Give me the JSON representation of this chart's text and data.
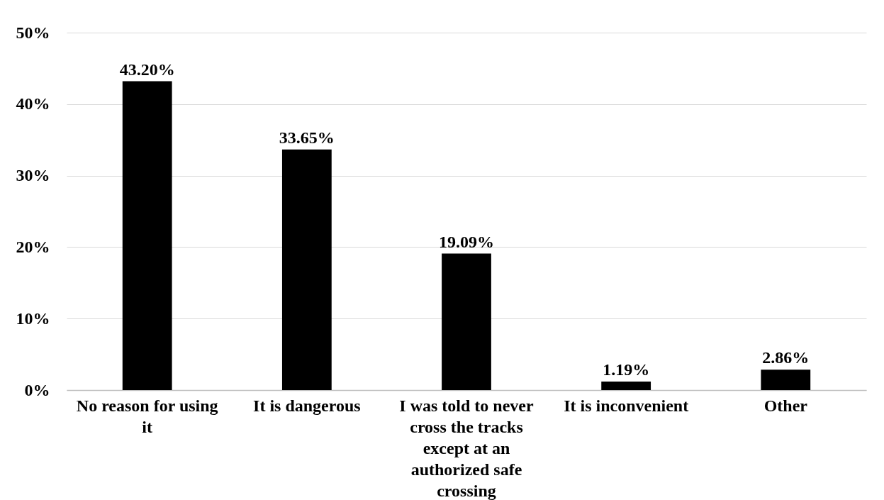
{
  "chart_data": {
    "type": "bar",
    "categories": [
      "No reason for using it",
      "It is dangerous",
      "I was told to never cross the tracks except at an authorized safe crossing",
      "It is inconvenient",
      "Other"
    ],
    "values": [
      43.2,
      33.65,
      19.09,
      1.19,
      2.86
    ],
    "value_labels": [
      "43.20%",
      "33.65%",
      "19.09%",
      "1.19%",
      "2.86%"
    ],
    "color": "#000000",
    "ylim": [
      0,
      50
    ],
    "yticks": [
      {
        "value": 0,
        "label": "0%"
      },
      {
        "value": 10,
        "label": "10%"
      },
      {
        "value": 20,
        "label": "20%"
      },
      {
        "value": 30,
        "label": "30%"
      },
      {
        "value": 40,
        "label": "40%"
      },
      {
        "value": 50,
        "label": "50%"
      }
    ],
    "grid": "y"
  }
}
